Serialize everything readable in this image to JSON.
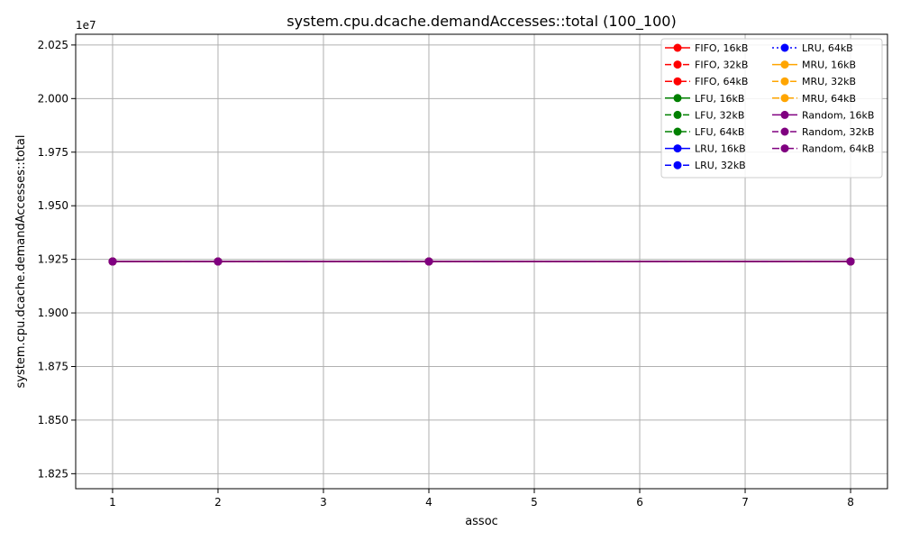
{
  "chart_data": {
    "type": "line",
    "title": "system.cpu.dcache.demandAccesses::total (100_100)",
    "xlabel": "assoc",
    "ylabel": "system.cpu.dcache.demandAccesses::total",
    "y_offset_label": "1e7",
    "xlim": [
      0.65,
      8.35
    ],
    "ylim": [
      18.18,
      20.3
    ],
    "y_scale_factor": 10000000,
    "x_ticks": [
      1,
      2,
      3,
      4,
      5,
      6,
      7,
      8
    ],
    "x_tick_labels": [
      "1",
      "2",
      "3",
      "4",
      "5",
      "6",
      "7",
      "8"
    ],
    "y_ticks": [
      18.25,
      18.5,
      18.75,
      19.0,
      19.25,
      19.5,
      19.75,
      20.0,
      20.25
    ],
    "y_tick_labels": [
      "1.825",
      "1.850",
      "1.875",
      "1.900",
      "1.925",
      "1.950",
      "1.975",
      "2.000",
      "2.025"
    ],
    "grid": true,
    "legend_position": "top-right",
    "legend_columns": 2,
    "x": [
      1,
      2,
      4,
      8
    ],
    "series": [
      {
        "name": "FIFO, 16kB",
        "color": "#ff0000",
        "linestyle": "solid",
        "values": [
          19.24,
          19.24,
          19.24,
          19.24
        ]
      },
      {
        "name": "FIFO, 32kB",
        "color": "#ff0000",
        "linestyle": "dashed",
        "values": [
          19.24,
          19.24,
          19.24,
          19.24
        ]
      },
      {
        "name": "FIFO, 64kB",
        "color": "#ff0000",
        "linestyle": "dashdot",
        "values": [
          19.24,
          19.24,
          19.24,
          19.24
        ]
      },
      {
        "name": "LFU, 16kB",
        "color": "#008000",
        "linestyle": "solid",
        "values": [
          19.24,
          19.24,
          19.24,
          19.24
        ]
      },
      {
        "name": "LFU, 32kB",
        "color": "#008000",
        "linestyle": "dashed",
        "values": [
          19.24,
          19.24,
          19.24,
          19.24
        ]
      },
      {
        "name": "LFU, 64kB",
        "color": "#008000",
        "linestyle": "dashdot",
        "values": [
          19.24,
          19.24,
          19.24,
          19.24
        ]
      },
      {
        "name": "LRU, 16kB",
        "color": "#0000ff",
        "linestyle": "solid",
        "values": [
          19.24,
          19.24,
          19.24,
          19.24
        ]
      },
      {
        "name": "LRU, 32kB",
        "color": "#0000ff",
        "linestyle": "dashed",
        "values": [
          19.24,
          19.24,
          19.24,
          19.24
        ]
      },
      {
        "name": "LRU, 64kB",
        "color": "#0000ff",
        "linestyle": "dotted",
        "values": [
          19.24,
          19.24,
          19.24,
          19.24
        ]
      },
      {
        "name": "MRU, 16kB",
        "color": "#ffa500",
        "linestyle": "solid",
        "values": [
          19.24,
          19.24,
          19.24,
          19.24
        ]
      },
      {
        "name": "MRU, 32kB",
        "color": "#ffa500",
        "linestyle": "dashed",
        "values": [
          19.24,
          19.24,
          19.24,
          19.24
        ]
      },
      {
        "name": "MRU, 64kB",
        "color": "#ffa500",
        "linestyle": "dashdot",
        "values": [
          19.24,
          19.24,
          19.24,
          19.24
        ]
      },
      {
        "name": "Random, 16kB",
        "color": "#800080",
        "linestyle": "solid",
        "values": [
          19.24,
          19.24,
          19.24,
          19.24
        ]
      },
      {
        "name": "Random, 32kB",
        "color": "#800080",
        "linestyle": "dashed",
        "values": [
          19.24,
          19.24,
          19.24,
          19.24
        ]
      },
      {
        "name": "Random, 64kB",
        "color": "#800080",
        "linestyle": "dashdot",
        "values": [
          19.24,
          19.24,
          19.24,
          19.24
        ]
      }
    ]
  }
}
